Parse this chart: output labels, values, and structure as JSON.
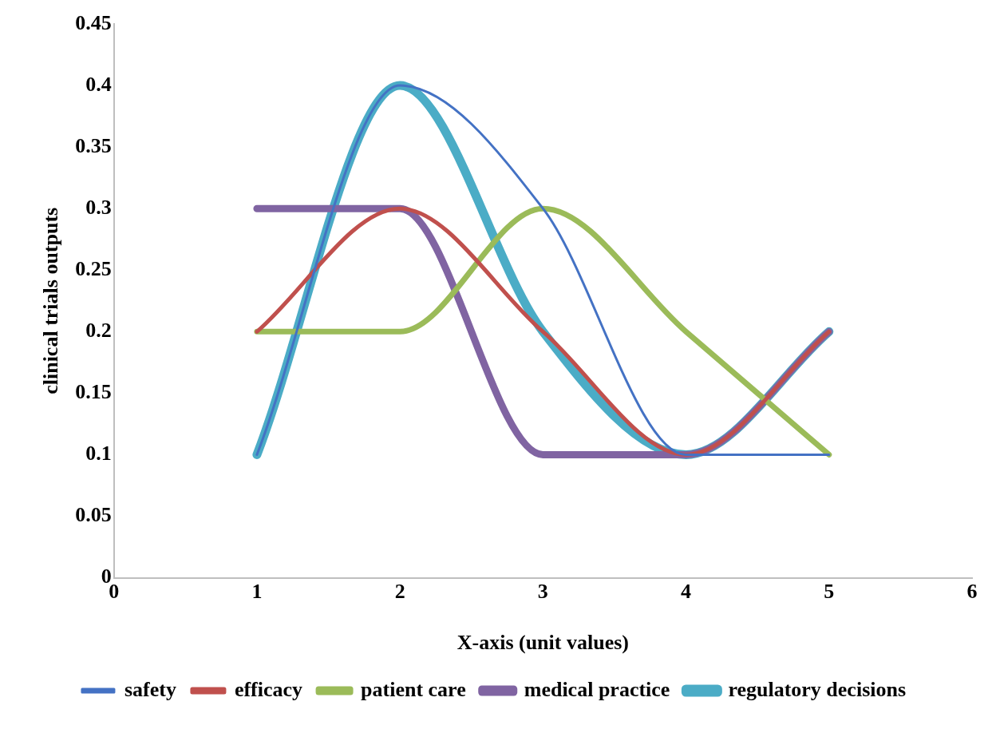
{
  "chart_data": {
    "type": "line",
    "xlabel": "X-axis (unit values)",
    "ylabel": "clinical trials outputs",
    "x": [
      1,
      2,
      3,
      4,
      5
    ],
    "series": [
      {
        "name": "safety",
        "color": "#4472c4",
        "values": [
          0.1,
          0.4,
          0.3,
          0.1,
          0.1
        ]
      },
      {
        "name": "efficacy",
        "color": "#c0504d",
        "values": [
          0.2,
          0.3,
          0.2,
          0.1,
          0.2
        ]
      },
      {
        "name": "patient care",
        "color": "#9bbb59",
        "values": [
          0.2,
          0.2,
          0.3,
          0.2,
          0.1
        ]
      },
      {
        "name": "medical practice",
        "color": "#8064a2",
        "values": [
          0.3,
          0.3,
          0.1,
          0.1,
          0.2
        ]
      },
      {
        "name": "regulatory decisions",
        "color": "#4bacc6",
        "values": [
          0.1,
          0.4,
          0.2,
          0.1,
          0.2
        ]
      }
    ],
    "xlim": [
      0,
      6
    ],
    "xticks": [
      0,
      1,
      2,
      3,
      4,
      5,
      6
    ],
    "ylim": [
      0,
      0.45
    ],
    "yticks": [
      0,
      0.05,
      0.1,
      0.15,
      0.2,
      0.25,
      0.3,
      0.35,
      0.4,
      0.45
    ],
    "grid": false,
    "legend": "bottom",
    "marker": "none",
    "line_style": "solid"
  }
}
